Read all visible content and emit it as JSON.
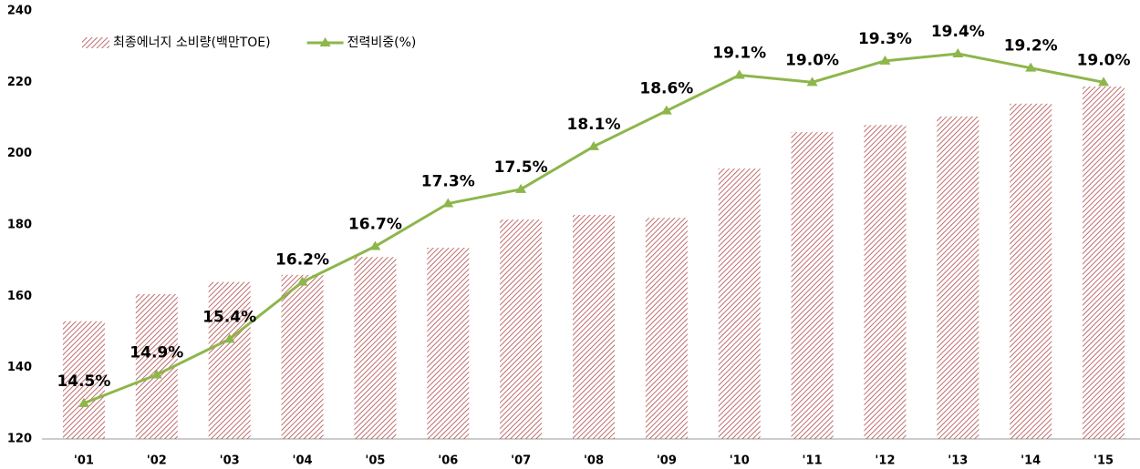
{
  "chart_data": {
    "type": "bar",
    "categories": [
      "'01",
      "'02",
      "'03",
      "'04",
      "'05",
      "'06",
      "'07",
      "'08",
      "'09",
      "'10",
      "'11",
      "'12",
      "'13",
      "'14",
      "'15"
    ],
    "series": [
      {
        "name": "최종에너지 소비량(백만TOE)",
        "type": "bar",
        "color": "#b04a4a",
        "values": [
          153,
          160.6,
          164,
          166,
          171,
          173.6,
          181.5,
          182.8,
          182,
          195.8,
          206,
          208,
          210.4,
          214,
          218.8
        ]
      },
      {
        "name": "전력비중(%)",
        "type": "line",
        "axis": "y2",
        "color": "#8db64b",
        "values": [
          14.5,
          14.9,
          15.4,
          16.2,
          16.7,
          17.3,
          17.5,
          18.1,
          18.6,
          19.1,
          19.0,
          19.3,
          19.4,
          19.2,
          19.0
        ],
        "value_labels": [
          "14.5%",
          "14.9%",
          "15.4%",
          "16.2%",
          "16.7%",
          "17.3%",
          "17.5%",
          "18.1%",
          "18.6%",
          "19.1%",
          "19.0%",
          "19.3%",
          "19.4%",
          "19.2%",
          "19.0%"
        ]
      }
    ],
    "ylim": [
      120,
      240
    ],
    "yticks": [
      120,
      140,
      160,
      180,
      200,
      220,
      240
    ],
    "y2lim": [
      14,
      20
    ],
    "grid": false,
    "legend": "top-left"
  }
}
